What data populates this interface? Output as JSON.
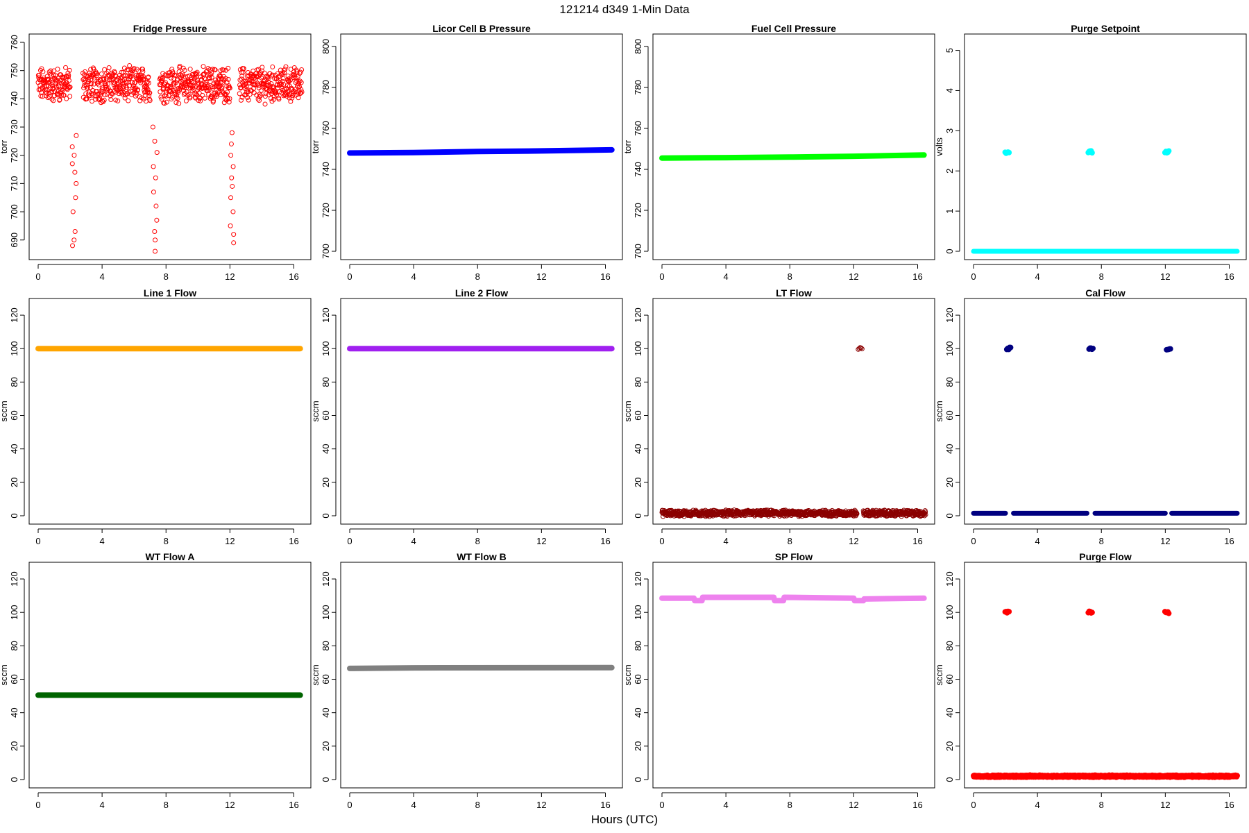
{
  "figure": {
    "title": "121214   d349   1-Min Data",
    "xlabel": "Hours (UTC)"
  },
  "chart_data": [
    {
      "type": "scatter",
      "title": "Fridge Pressure",
      "ylabel": "torr",
      "xlim": [
        0,
        16.5
      ],
      "ylim": [
        686,
        760
      ],
      "xticks": [
        0,
        4,
        8,
        12,
        16
      ],
      "yticks": [
        690,
        700,
        710,
        720,
        730,
        740,
        750,
        760
      ],
      "color": "#ff0000",
      "marker": "open-circle",
      "series": [
        {
          "segments": [
            [
              0,
              2.0
            ],
            [
              2.8,
              7.0
            ],
            [
              7.6,
              12.0
            ],
            [
              12.6,
              16.5
            ]
          ],
          "level": 745,
          "noise": 5
        },
        {
          "drops": [
            {
              "x": 2.3,
              "values": [
                727,
                723,
                720,
                717,
                714,
                710,
                705,
                700,
                693,
                690,
                688
              ]
            },
            {
              "x": 7.3,
              "values": [
                730,
                725,
                721,
                716,
                712,
                707,
                702,
                697,
                693,
                690,
                686
              ]
            },
            {
              "x": 12.2,
              "values": [
                728,
                724,
                720,
                716,
                712,
                709,
                705,
                700,
                695,
                692,
                689
              ]
            }
          ]
        }
      ]
    },
    {
      "type": "line",
      "title": "Licor Cell B Pressure",
      "ylabel": "torr",
      "xlim": [
        0,
        16.5
      ],
      "ylim": [
        700,
        802
      ],
      "xticks": [
        0,
        4,
        8,
        12,
        16
      ],
      "yticks": [
        700,
        720,
        740,
        760,
        780,
        800
      ],
      "color": "#0000ff",
      "marker": "filled",
      "x": [
        0,
        4,
        8,
        12,
        16.4
      ],
      "y": [
        748.0,
        748.2,
        748.7,
        749.0,
        749.5
      ]
    },
    {
      "type": "line",
      "title": "Fuel Cell Pressure",
      "ylabel": "torr",
      "xlim": [
        0,
        16.5
      ],
      "ylim": [
        700,
        802
      ],
      "xticks": [
        0,
        4,
        8,
        12,
        16
      ],
      "yticks": [
        700,
        720,
        740,
        760,
        780,
        800
      ],
      "color": "#00ff00",
      "marker": "filled",
      "x": [
        0,
        4,
        8,
        12,
        16.4
      ],
      "y": [
        745.5,
        745.7,
        746.0,
        746.4,
        747.0
      ]
    },
    {
      "type": "scatter",
      "title": "Purge Setpoint",
      "ylabel": "volts",
      "xlim": [
        0,
        16.5
      ],
      "ylim": [
        0,
        5.2
      ],
      "xticks": [
        0,
        4,
        8,
        12,
        16
      ],
      "yticks": [
        0,
        1,
        2,
        3,
        4,
        5
      ],
      "color": "#00ffff",
      "marker": "filled",
      "series": [
        {
          "segments": [
            [
              0,
              16.5
            ]
          ],
          "level": 0
        },
        {
          "spikes": [
            {
              "x": 2.1,
              "y": 2.47
            },
            {
              "x": 7.3,
              "y": 2.47
            },
            {
              "x": 12.1,
              "y": 2.47
            }
          ]
        }
      ]
    },
    {
      "type": "line",
      "title": "Line 1 Flow",
      "ylabel": "sccm",
      "xlim": [
        0,
        16.5
      ],
      "ylim": [
        0,
        125
      ],
      "xticks": [
        0,
        4,
        8,
        12,
        16
      ],
      "yticks": [
        0,
        20,
        40,
        60,
        80,
        100,
        120
      ],
      "color": "#ffa500",
      "marker": "filled",
      "x": [
        0,
        16.4
      ],
      "y": [
        100,
        100
      ]
    },
    {
      "type": "line",
      "title": "Line 2 Flow",
      "ylabel": "sccm",
      "xlim": [
        0,
        16.5
      ],
      "ylim": [
        0,
        125
      ],
      "xticks": [
        0,
        4,
        8,
        12,
        16
      ],
      "yticks": [
        0,
        20,
        40,
        60,
        80,
        100,
        120
      ],
      "color": "#a020f0",
      "marker": "filled",
      "x": [
        0,
        16.4
      ],
      "y": [
        100,
        100
      ]
    },
    {
      "type": "scatter",
      "title": "LT Flow",
      "ylabel": "sccm",
      "xlim": [
        0,
        16.5
      ],
      "ylim": [
        0,
        125
      ],
      "xticks": [
        0,
        4,
        8,
        12,
        16
      ],
      "yticks": [
        0,
        20,
        40,
        60,
        80,
        100,
        120
      ],
      "color": "#8b0000",
      "marker": "open-circle",
      "series": [
        {
          "segments": [
            [
              0,
              12.2
            ],
            [
              12.6,
              16.5
            ]
          ],
          "level": 1.5,
          "noise": 1.5
        },
        {
          "spikes": [
            {
              "x": 12.4,
              "y": 100
            }
          ]
        }
      ]
    },
    {
      "type": "scatter",
      "title": "Cal Flow",
      "ylabel": "sccm",
      "xlim": [
        0,
        16.5
      ],
      "ylim": [
        0,
        125
      ],
      "xticks": [
        0,
        4,
        8,
        12,
        16
      ],
      "yticks": [
        0,
        20,
        40,
        60,
        80,
        100,
        120
      ],
      "color": "#000080",
      "marker": "filled",
      "series": [
        {
          "segments": [
            [
              0,
              2.0
            ],
            [
              2.5,
              7.1
            ],
            [
              7.6,
              12.0
            ],
            [
              12.4,
              16.5
            ]
          ],
          "level": 1.5
        },
        {
          "spikes": [
            {
              "x": 2.2,
              "y": 100
            },
            {
              "x": 7.35,
              "y": 100
            },
            {
              "x": 12.2,
              "y": 100
            }
          ]
        }
      ]
    },
    {
      "type": "line",
      "title": "WT Flow A",
      "ylabel": "sccm",
      "xlim": [
        0,
        16.5
      ],
      "ylim": [
        0,
        125
      ],
      "xticks": [
        0,
        4,
        8,
        12,
        16
      ],
      "yticks": [
        0,
        20,
        40,
        60,
        80,
        100,
        120
      ],
      "color": "#006400",
      "marker": "filled",
      "x": [
        0,
        16.4
      ],
      "y": [
        50.5,
        50.5
      ]
    },
    {
      "type": "line",
      "title": "WT Flow B",
      "ylabel": "sccm",
      "xlim": [
        0,
        16.5
      ],
      "ylim": [
        0,
        125
      ],
      "xticks": [
        0,
        4,
        8,
        12,
        16
      ],
      "yticks": [
        0,
        20,
        40,
        60,
        80,
        100,
        120
      ],
      "color": "#808080",
      "marker": "filled",
      "x": [
        0,
        4,
        16.4
      ],
      "y": [
        66.5,
        66.8,
        67.0
      ]
    },
    {
      "type": "line",
      "title": "SP Flow",
      "ylabel": "sccm",
      "xlim": [
        0,
        16.5
      ],
      "ylim": [
        0,
        125
      ],
      "xticks": [
        0,
        4,
        8,
        12,
        16
      ],
      "yticks": [
        0,
        20,
        40,
        60,
        80,
        100,
        120
      ],
      "color": "#ee82ee",
      "marker": "filled",
      "x": [
        0,
        2.0,
        2.05,
        2.5,
        2.55,
        7.0,
        7.05,
        7.6,
        7.65,
        12.0,
        12.05,
        12.6,
        12.65,
        16.4
      ],
      "y": [
        108.5,
        108.5,
        107,
        107,
        109,
        109,
        107,
        107,
        109,
        108.5,
        107,
        107,
        108,
        108.5
      ]
    },
    {
      "type": "scatter",
      "title": "Purge Flow",
      "ylabel": "sccm",
      "xlim": [
        0,
        16.5
      ],
      "ylim": [
        0,
        125
      ],
      "xticks": [
        0,
        4,
        8,
        12,
        16
      ],
      "yticks": [
        0,
        20,
        40,
        60,
        80,
        100,
        120
      ],
      "color": "#ff0000",
      "marker": "filled",
      "series": [
        {
          "segments": [
            [
              0,
              16.5
            ]
          ],
          "level": 2,
          "noise": 0.5
        },
        {
          "spikes": [
            {
              "x": 2.1,
              "y": 100
            },
            {
              "x": 7.3,
              "y": 100
            },
            {
              "x": 12.1,
              "y": 100
            }
          ]
        }
      ]
    }
  ]
}
